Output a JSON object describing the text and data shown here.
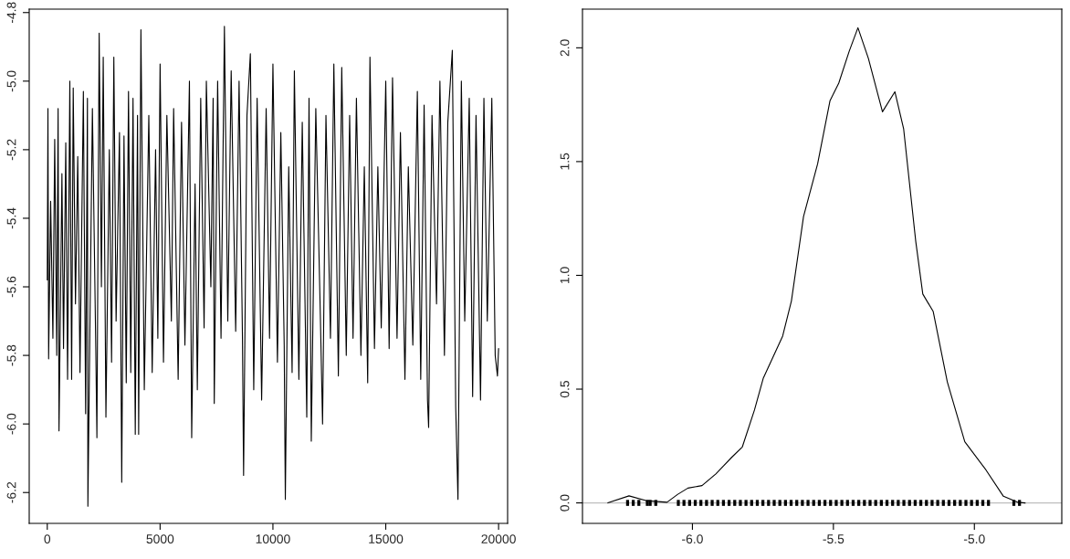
{
  "chart_data": [
    {
      "type": "line",
      "xlim": [
        -800,
        20400
      ],
      "ylim": [
        -6.29,
        -4.79
      ],
      "xticks": [
        0,
        5000,
        10000,
        15000,
        20000
      ],
      "yticks": [
        {
          "value": -6.2,
          "label": "-6.2"
        },
        {
          "value": -6.0,
          "label": "-6.0"
        },
        {
          "value": -5.8,
          "label": "-5.8"
        },
        {
          "value": -5.6,
          "label": "-5.6"
        },
        {
          "value": -5.4,
          "label": "-5.4"
        },
        {
          "value": -5.2,
          "label": "-5.2"
        },
        {
          "value": -5.0,
          "label": "-5.0"
        },
        {
          "value": -4.8,
          "label": "-4.8"
        }
      ],
      "grid": false,
      "series": [
        {
          "color": "#000000",
          "x": [
            0,
            30,
            60,
            150,
            250,
            330,
            420,
            480,
            520,
            650,
            720,
            820,
            900,
            1000,
            1080,
            1150,
            1250,
            1350,
            1450,
            1600,
            1700,
            1780,
            1800,
            2000,
            2150,
            2200,
            2300,
            2400,
            2480,
            2600,
            2750,
            2850,
            2950,
            3050,
            3200,
            3300,
            3400,
            3500,
            3600,
            3700,
            3800,
            3900,
            4000,
            4050,
            4150,
            4300,
            4500,
            4650,
            4800,
            4900,
            5000,
            5150,
            5300,
            5500,
            5600,
            5800,
            5950,
            6100,
            6300,
            6400,
            6550,
            6650,
            6800,
            6950,
            7050,
            7250,
            7350,
            7400,
            7550,
            7700,
            7850,
            8000,
            8150,
            8350,
            8500,
            8650,
            8700,
            8850,
            9000,
            9150,
            9300,
            9500,
            9700,
            9850,
            10000,
            10200,
            10350,
            10500,
            10550,
            10700,
            10850,
            10950,
            11150,
            11300,
            11500,
            11600,
            11700,
            11900,
            12100,
            12200,
            12350,
            12550,
            12700,
            12900,
            13050,
            13250,
            13400,
            13550,
            13700,
            13900,
            14050,
            14200,
            14300,
            14500,
            14650,
            14800,
            15000,
            15150,
            15300,
            15500,
            15650,
            15850,
            16000,
            16200,
            16400,
            16550,
            16700,
            16850,
            16900,
            17050,
            17250,
            17400,
            17600,
            17750,
            17950,
            18100,
            18200,
            18350,
            18500,
            18700,
            18850,
            19000,
            19200,
            19350,
            19500,
            19700,
            19850,
            19950,
            20000
          ],
          "values": [
            -5.58,
            -5.08,
            -5.81,
            -5.35,
            -5.75,
            -5.17,
            -5.8,
            -5.08,
            -6.02,
            -5.27,
            -5.78,
            -5.18,
            -5.87,
            -5.0,
            -5.87,
            -5.02,
            -5.65,
            -5.22,
            -5.85,
            -5.03,
            -5.97,
            -5.05,
            -6.24,
            -5.08,
            -5.78,
            -6.04,
            -4.86,
            -5.6,
            -4.93,
            -5.98,
            -5.2,
            -5.82,
            -4.93,
            -5.7,
            -5.15,
            -6.17,
            -5.16,
            -5.88,
            -5.03,
            -5.85,
            -5.05,
            -6.03,
            -5.1,
            -6.03,
            -4.85,
            -5.9,
            -5.1,
            -5.85,
            -5.2,
            -5.75,
            -4.95,
            -5.82,
            -5.1,
            -5.7,
            -5.08,
            -5.87,
            -5.12,
            -5.77,
            -5.0,
            -6.04,
            -5.3,
            -5.9,
            -5.05,
            -5.72,
            -5.0,
            -5.6,
            -5.05,
            -5.94,
            -5.0,
            -5.75,
            -4.84,
            -5.7,
            -4.97,
            -5.73,
            -5.0,
            -5.75,
            -6.15,
            -5.1,
            -4.92,
            -5.9,
            -5.05,
            -5.93,
            -5.08,
            -5.75,
            -4.95,
            -5.82,
            -5.15,
            -5.77,
            -6.22,
            -5.25,
            -5.85,
            -4.97,
            -5.87,
            -5.12,
            -5.98,
            -5.05,
            -6.05,
            -5.08,
            -5.68,
            -6.0,
            -5.1,
            -5.75,
            -4.95,
            -5.86,
            -4.96,
            -5.8,
            -5.1,
            -5.75,
            -5.05,
            -5.8,
            -5.25,
            -5.88,
            -4.93,
            -5.78,
            -5.25,
            -5.72,
            -5.0,
            -5.78,
            -4.99,
            -5.75,
            -5.15,
            -5.87,
            -5.25,
            -5.77,
            -5.03,
            -5.87,
            -5.07,
            -5.93,
            -6.01,
            -5.1,
            -5.65,
            -5.0,
            -5.8,
            -5.12,
            -4.91,
            -5.95,
            -6.22,
            -5.0,
            -5.7,
            -5.05,
            -5.92,
            -5.1,
            -5.93,
            -5.05,
            -5.7,
            -5.05,
            -5.8,
            -5.86,
            -5.78
          ]
        }
      ]
    },
    {
      "type": "line",
      "xlim": [
        -6.39,
        -4.69
      ],
      "ylim": [
        -0.09,
        2.17
      ],
      "xticks": [
        {
          "value": -6.0,
          "label": "-6.0"
        },
        {
          "value": -5.5,
          "label": "-5.5"
        },
        {
          "value": -5.0,
          "label": "-5.0"
        }
      ],
      "yticks": [
        {
          "value": 0.0,
          "label": "0.0"
        },
        {
          "value": 0.5,
          "label": "0.5"
        },
        {
          "value": 1.0,
          "label": "1.0"
        },
        {
          "value": 1.5,
          "label": "1.5"
        },
        {
          "value": 2.0,
          "label": "2.0"
        }
      ],
      "grid": false,
      "ref_lines": [
        {
          "axis": "y",
          "value": 0,
          "color": "#bebebe"
        }
      ],
      "series": [
        {
          "color": "#000000",
          "x": [
            -6.3,
            -6.225,
            -6.165,
            -6.09,
            -6.053,
            -6.016,
            -5.966,
            -5.917,
            -5.861,
            -5.823,
            -5.78,
            -5.749,
            -5.68,
            -5.649,
            -5.606,
            -5.556,
            -5.512,
            -5.481,
            -5.444,
            -5.413,
            -5.376,
            -5.326,
            -5.282,
            -5.251,
            -5.208,
            -5.183,
            -5.146,
            -5.096,
            -5.034,
            -4.959,
            -4.897,
            -4.847,
            -4.82
          ],
          "values": [
            0,
            0.031,
            0.01,
            0.003,
            0.037,
            0.065,
            0.076,
            0.127,
            0.2,
            0.246,
            0.408,
            0.547,
            0.733,
            0.887,
            1.258,
            1.49,
            1.768,
            1.845,
            1.985,
            2.088,
            1.954,
            1.719,
            1.807,
            1.645,
            1.15,
            0.918,
            0.841,
            0.532,
            0.269,
            0.145,
            0.029,
            0.003,
            0
          ]
        },
        {
          "type": "scatter",
          "color": "#000000",
          "x": [
            -6.23,
            -6.21,
            -6.19,
            -6.16,
            -6.15,
            -6.13,
            -6.05,
            -6.03,
            -6.01,
            -5.99,
            -5.97,
            -5.95,
            -5.93,
            -5.91,
            -5.89,
            -5.87,
            -5.85,
            -5.83,
            -5.81,
            -5.79,
            -5.77,
            -5.75,
            -5.73,
            -5.71,
            -5.69,
            -5.67,
            -5.65,
            -5.63,
            -5.61,
            -5.59,
            -5.57,
            -5.55,
            -5.53,
            -5.51,
            -5.49,
            -5.47,
            -5.45,
            -5.43,
            -5.41,
            -5.39,
            -5.37,
            -5.35,
            -5.33,
            -5.31,
            -5.29,
            -5.27,
            -5.25,
            -5.23,
            -5.21,
            -5.19,
            -5.17,
            -5.15,
            -5.13,
            -5.11,
            -5.09,
            -5.07,
            -5.05,
            -5.03,
            -5.01,
            -4.99,
            -4.97,
            -4.95,
            -4.86,
            -4.84
          ],
          "values": [
            0,
            0,
            0,
            0,
            0,
            0,
            0,
            0,
            0,
            0,
            0,
            0,
            0,
            0,
            0,
            0,
            0,
            0,
            0,
            0,
            0,
            0,
            0,
            0,
            0,
            0,
            0,
            0,
            0,
            0,
            0,
            0,
            0,
            0,
            0,
            0,
            0,
            0,
            0,
            0,
            0,
            0,
            0,
            0,
            0,
            0,
            0,
            0,
            0,
            0,
            0,
            0,
            0,
            0,
            0,
            0,
            0,
            0,
            0,
            0,
            0,
            0,
            0,
            0
          ]
        }
      ]
    }
  ]
}
